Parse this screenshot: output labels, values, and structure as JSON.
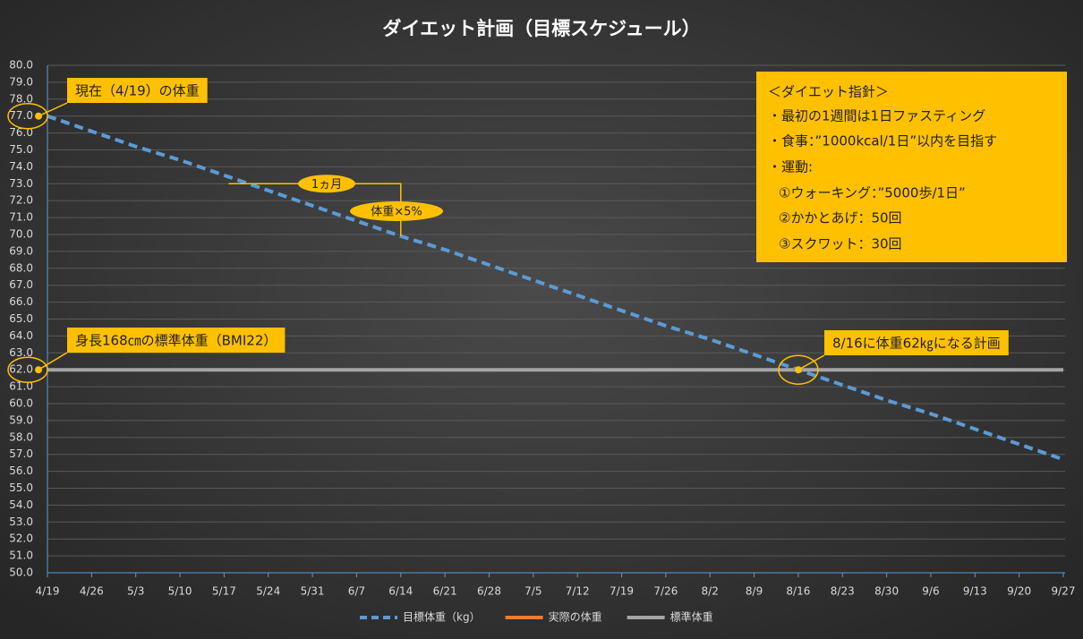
{
  "chart_data": {
    "type": "line",
    "title": "ダイエット計画（目標スケジュール）",
    "categories": [
      "4/19",
      "4/26",
      "5/3",
      "5/10",
      "5/17",
      "5/24",
      "5/31",
      "6/7",
      "6/14",
      "6/21",
      "6/28",
      "7/5",
      "7/12",
      "7/19",
      "7/26",
      "8/2",
      "8/9",
      "8/16",
      "8/23",
      "8/30",
      "9/6",
      "9/13",
      "9/20",
      "9/27"
    ],
    "series": [
      {
        "name": "目標体重（kg）",
        "color": "#5b9bd5",
        "style": "dashed",
        "values": [
          77.0,
          76.1,
          75.2,
          74.4,
          73.5,
          72.6,
          71.7,
          70.8,
          69.9,
          69.1,
          68.2,
          67.3,
          66.4,
          65.5,
          64.6,
          63.8,
          62.9,
          62.0,
          61.1,
          60.2,
          59.4,
          58.5,
          57.6,
          56.7
        ]
      },
      {
        "name": "実際の体重",
        "color": "#ed7d31",
        "style": "solid",
        "values": [
          null,
          null,
          null,
          null,
          null,
          null,
          null,
          null,
          null,
          null,
          null,
          null,
          null,
          null,
          null,
          null,
          null,
          null,
          null,
          null,
          null,
          null,
          null,
          null
        ]
      },
      {
        "name": "標準体重",
        "color": "#a5a5a5",
        "style": "solid",
        "values": [
          62.0,
          62.0,
          62.0,
          62.0,
          62.0,
          62.0,
          62.0,
          62.0,
          62.0,
          62.0,
          62.0,
          62.0,
          62.0,
          62.0,
          62.0,
          62.0,
          62.0,
          62.0,
          62.0,
          62.0,
          62.0,
          62.0,
          62.0,
          62.0
        ]
      }
    ],
    "ylim": [
      50,
      80
    ],
    "yticks": [
      {
        "value": 50,
        "label": "50.0"
      },
      {
        "value": 51,
        "label": "51.0"
      },
      {
        "value": 52,
        "label": "52.0"
      },
      {
        "value": 53,
        "label": "53.0"
      },
      {
        "value": 54,
        "label": "54.0"
      },
      {
        "value": 55,
        "label": "55.0"
      },
      {
        "value": 56,
        "label": "56.0"
      },
      {
        "value": 57,
        "label": "57.0"
      },
      {
        "value": 58,
        "label": "58.0"
      },
      {
        "value": 59,
        "label": "59.0"
      },
      {
        "value": 60,
        "label": "60.0"
      },
      {
        "value": 61,
        "label": "61.0"
      },
      {
        "value": 62,
        "label": "62.0"
      },
      {
        "value": 63,
        "label": "63.0"
      },
      {
        "value": 64,
        "label": "64.0"
      },
      {
        "value": 65,
        "label": "65.0"
      },
      {
        "value": 66,
        "label": "66.0"
      },
      {
        "value": 67,
        "label": "67.0"
      },
      {
        "value": 68,
        "label": "68.0"
      },
      {
        "value": 69,
        "label": "69.0"
      },
      {
        "value": 70,
        "label": "70.0"
      },
      {
        "value": 71,
        "label": "71.0"
      },
      {
        "value": 72,
        "label": "72.0"
      },
      {
        "value": 73,
        "label": "73.0"
      },
      {
        "value": 74,
        "label": "74.0"
      },
      {
        "value": 75,
        "label": "75.0"
      },
      {
        "value": 76,
        "label": "76.0"
      },
      {
        "value": 77,
        "label": "77.0"
      },
      {
        "value": 78,
        "label": "78.0"
      },
      {
        "value": 79,
        "label": "79.0"
      },
      {
        "value": 80,
        "label": "80.0"
      }
    ],
    "grid": true,
    "legend": "bottom",
    "annotations": [
      "現在（4/19）の体重",
      "身長168㎝の標準体重（BMI22）",
      "8/16に体重62㎏になる計画",
      "1ヵ月",
      "体重×5%"
    ],
    "guide": {
      "title": "＜ダイエット指針＞",
      "lines": [
        "・最初の1週間は1日ファスティング",
        "・食事：”1000kcal/1日”以内を目指す",
        "・運動:",
        "①ウォーキング：”5000歩/1日”",
        "②かかとあげ：50回",
        "③スクワット：30回"
      ]
    }
  }
}
